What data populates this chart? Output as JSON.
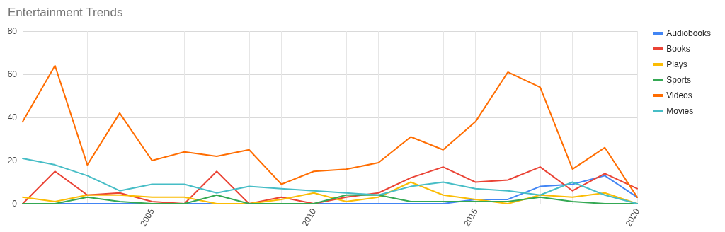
{
  "chart_data": {
    "type": "line",
    "title": "Entertainment Trends",
    "x": [
      2001,
      2002,
      2003,
      2004,
      2005,
      2006,
      2007,
      2008,
      2009,
      2010,
      2011,
      2012,
      2013,
      2014,
      2015,
      2016,
      2017,
      2018,
      2019,
      2020
    ],
    "series": [
      {
        "name": "Audiobooks",
        "color": "#4285f4",
        "values": [
          0,
          0,
          0,
          0,
          0,
          0,
          0,
          0,
          0,
          0,
          0,
          0,
          0,
          0,
          2,
          2,
          8,
          9,
          13,
          3
        ]
      },
      {
        "name": "Books",
        "color": "#ea4335",
        "values": [
          0,
          15,
          4,
          5,
          1,
          0,
          15,
          0,
          3,
          0,
          3,
          5,
          12,
          17,
          10,
          11,
          17,
          6,
          14,
          7
        ]
      },
      {
        "name": "Plays",
        "color": "#fbbc04",
        "values": [
          3,
          1,
          4,
          4,
          3,
          3,
          0,
          0,
          2,
          5,
          1,
          3,
          10,
          4,
          2,
          0,
          4,
          3,
          5,
          0
        ]
      },
      {
        "name": "Sports",
        "color": "#34a853",
        "values": [
          0,
          0,
          3,
          1,
          0,
          0,
          4,
          0,
          0,
          0,
          4,
          4,
          1,
          1,
          1,
          1,
          3,
          1,
          0,
          0
        ]
      },
      {
        "name": "Videos",
        "color": "#ff6d01",
        "values": [
          38,
          64,
          18,
          42,
          20,
          24,
          22,
          25,
          9,
          15,
          16,
          19,
          31,
          25,
          38,
          61,
          54,
          16,
          26,
          3
        ]
      },
      {
        "name": "Movies",
        "color": "#46bdc6",
        "values": [
          21,
          18,
          13,
          6,
          9,
          9,
          5,
          8,
          7,
          6,
          5,
          4,
          8,
          10,
          7,
          6,
          4,
          10,
          4,
          0
        ]
      }
    ],
    "xlim": [
      2001,
      2020
    ],
    "xticks": [
      {
        "value": 2001,
        "label": null
      },
      {
        "value": 2002,
        "label": null
      },
      {
        "value": 2003,
        "label": null
      },
      {
        "value": 2004,
        "label": null
      },
      2005,
      {
        "value": 2006,
        "label": null
      },
      {
        "value": 2007,
        "label": null
      },
      {
        "value": 2008,
        "label": null
      },
      {
        "value": 2009,
        "label": null
      },
      2010,
      {
        "value": 2011,
        "label": null
      },
      {
        "value": 2012,
        "label": null
      },
      {
        "value": 2013,
        "label": null
      },
      {
        "value": 2014,
        "label": null
      },
      2015,
      {
        "value": 2016,
        "label": null
      },
      {
        "value": 2017,
        "label": null
      },
      {
        "value": 2018,
        "label": null
      },
      {
        "value": 2019,
        "label": null
      },
      2020
    ],
    "ylim": [
      0,
      80
    ],
    "yticks": [
      0,
      20,
      40,
      60,
      80
    ],
    "grid": true,
    "legend": "top right",
    "marker": "none",
    "line_style": "solid"
  }
}
